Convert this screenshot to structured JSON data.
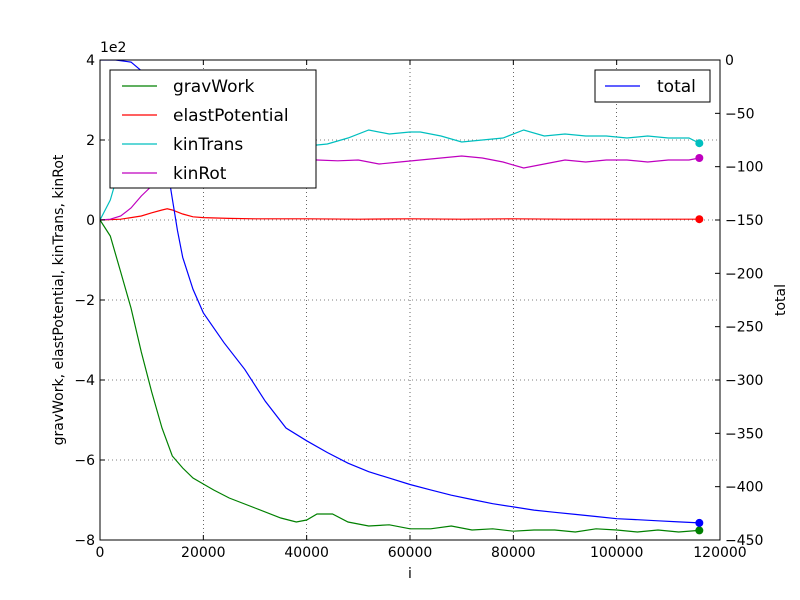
{
  "chart_data": {
    "type": "line",
    "x_label": "i",
    "y_left_label": "gravWork, elastPotential, kinTrans, kinRot",
    "y_right_label": "total",
    "y_left_offset_text": "1e2",
    "x_range": [
      0,
      120000
    ],
    "y_left_range": [
      -8,
      4
    ],
    "y_right_range": [
      -450,
      0
    ],
    "x_ticks": [
      0,
      20000,
      40000,
      60000,
      80000,
      100000,
      120000
    ],
    "x_tick_labels": [
      "0",
      "20000",
      "40000",
      "60000",
      "80000",
      "100000",
      "120000"
    ],
    "y_left_ticks": [
      -8,
      -6,
      -4,
      -2,
      0,
      2,
      4
    ],
    "y_left_tick_labels": [
      "−8",
      "−6",
      "−4",
      "−2",
      "0",
      "2",
      "4"
    ],
    "y_right_ticks": [
      0,
      -50,
      -100,
      -150,
      -200,
      -250,
      -300,
      -350,
      -400,
      -450
    ],
    "y_right_tick_labels": [
      "0",
      "−50",
      "−100",
      "−150",
      "−200",
      "−250",
      "−300",
      "−350",
      "−400",
      "−450"
    ],
    "grid": true,
    "legend_left": {
      "placement": "top-left",
      "entries": [
        "gravWork",
        "elastPotential",
        "kinTrans",
        "kinRot"
      ]
    },
    "legend_right": {
      "placement": "top-right",
      "entries": [
        "total"
      ]
    },
    "series": [
      {
        "name": "gravWork",
        "axis": "left",
        "color": "#008000",
        "end_marker": true,
        "x": [
          0,
          2000,
          4000,
          6000,
          8000,
          10000,
          12000,
          14000,
          16000,
          18000,
          20000,
          22000,
          25000,
          30000,
          35000,
          38000,
          40000,
          42000,
          45000,
          48000,
          52000,
          56000,
          60000,
          64000,
          68000,
          72000,
          76000,
          80000,
          84000,
          88000,
          92000,
          96000,
          100000,
          104000,
          108000,
          112000,
          116000
        ],
        "y": [
          0,
          -0.4,
          -1.3,
          -2.2,
          -3.3,
          -4.3,
          -5.2,
          -5.9,
          -6.2,
          -6.45,
          -6.6,
          -6.75,
          -6.95,
          -7.2,
          -7.45,
          -7.55,
          -7.5,
          -7.35,
          -7.35,
          -7.55,
          -7.65,
          -7.62,
          -7.72,
          -7.72,
          -7.65,
          -7.75,
          -7.72,
          -7.78,
          -7.75,
          -7.75,
          -7.8,
          -7.72,
          -7.75,
          -7.8,
          -7.75,
          -7.8,
          -7.76
        ]
      },
      {
        "name": "elastPotential",
        "axis": "left",
        "color": "#ff0000",
        "end_marker": true,
        "x": [
          0,
          4000,
          8000,
          10000,
          12000,
          13000,
          14000,
          16000,
          18000,
          20000,
          25000,
          30000,
          40000,
          50000,
          60000,
          70000,
          80000,
          90000,
          100000,
          110000,
          116000
        ],
        "y": [
          0,
          0.02,
          0.1,
          0.18,
          0.25,
          0.28,
          0.25,
          0.15,
          0.08,
          0.06,
          0.04,
          0.03,
          0.03,
          0.02,
          0.03,
          0.02,
          0.03,
          0.02,
          0.02,
          0.02,
          0.02
        ]
      },
      {
        "name": "kinTrans",
        "axis": "left",
        "color": "#00bfbf",
        "end_marker": true,
        "x": [
          0,
          2000,
          4000,
          6000,
          8000,
          10000,
          12000,
          14000,
          16000,
          18000,
          20000,
          24000,
          28000,
          32000,
          36000,
          40000,
          44000,
          48000,
          52000,
          56000,
          60000,
          62000,
          66000,
          70000,
          74000,
          78000,
          82000,
          86000,
          90000,
          94000,
          98000,
          102000,
          106000,
          110000,
          114000,
          116000
        ],
        "y": [
          0,
          0.5,
          1.4,
          2.2,
          2.5,
          2.4,
          2.15,
          2.0,
          1.95,
          2.0,
          2.05,
          2.0,
          1.9,
          1.85,
          1.8,
          1.85,
          1.9,
          2.05,
          2.25,
          2.15,
          2.2,
          2.2,
          2.1,
          1.95,
          2.0,
          2.05,
          2.25,
          2.1,
          2.15,
          2.1,
          2.1,
          2.05,
          2.1,
          2.05,
          2.05,
          1.92
        ]
      },
      {
        "name": "kinRot",
        "axis": "left",
        "color": "#bf00bf",
        "end_marker": true,
        "x": [
          0,
          2000,
          4000,
          6000,
          8000,
          10000,
          12000,
          14000,
          16000,
          18000,
          22000,
          26000,
          30000,
          34000,
          38000,
          42000,
          46000,
          50000,
          54000,
          58000,
          62000,
          66000,
          70000,
          74000,
          78000,
          82000,
          86000,
          90000,
          94000,
          98000,
          102000,
          106000,
          110000,
          114000,
          116000
        ],
        "y": [
          0,
          0.02,
          0.1,
          0.3,
          0.6,
          0.85,
          1.1,
          1.3,
          1.45,
          1.5,
          1.5,
          1.5,
          1.48,
          1.5,
          1.52,
          1.5,
          1.48,
          1.5,
          1.4,
          1.45,
          1.5,
          1.55,
          1.6,
          1.55,
          1.45,
          1.3,
          1.4,
          1.5,
          1.45,
          1.5,
          1.5,
          1.45,
          1.5,
          1.5,
          1.55
        ]
      },
      {
        "name": "total",
        "axis": "right",
        "color": "#0000ff",
        "end_marker": true,
        "x": [
          0,
          3000,
          6000,
          8000,
          10000,
          12000,
          13000,
          14000,
          15000,
          16000,
          18000,
          20000,
          24000,
          28000,
          32000,
          36000,
          40000,
          44000,
          48000,
          52000,
          56000,
          60000,
          64000,
          68000,
          72000,
          76000,
          80000,
          84000,
          88000,
          92000,
          96000,
          100000,
          104000,
          108000,
          112000,
          116000
        ],
        "y": [
          0,
          0,
          -2,
          -10,
          -30,
          -70,
          -100,
          -130,
          -160,
          -185,
          -215,
          -237,
          -265,
          -290,
          -320,
          -345,
          -357,
          -368,
          -378,
          -386,
          -392,
          -398,
          -403,
          -408,
          -412,
          -416,
          -419,
          -422,
          -424,
          -426,
          -428,
          -430,
          -431,
          -432,
          -433,
          -434
        ]
      }
    ]
  }
}
